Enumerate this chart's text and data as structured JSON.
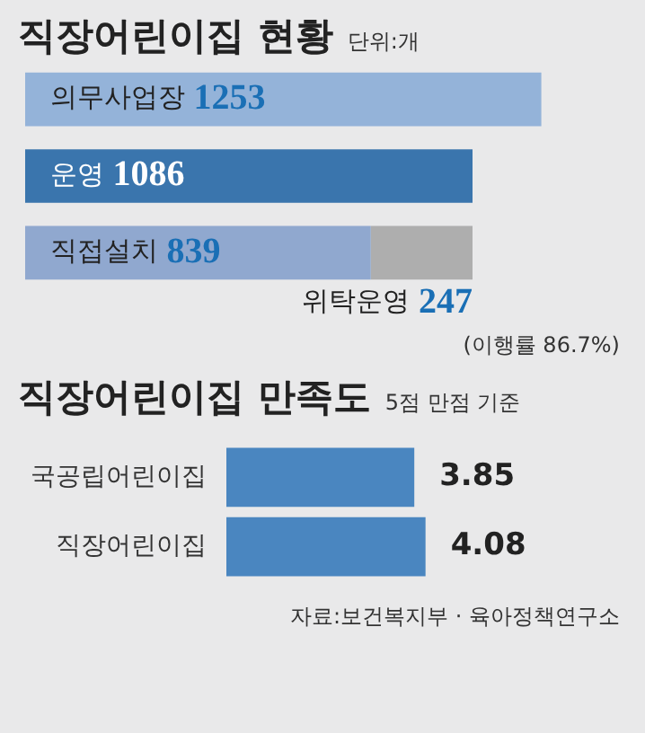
{
  "chart_data": [
    {
      "type": "bar",
      "orientation": "horizontal",
      "stacked": true,
      "title": "직장어린이집 현황",
      "subtitle": "단위:개",
      "categories": [
        null,
        null,
        null
      ],
      "tick_labels": false,
      "data_labels": true,
      "annotations": [
        "(이행률 86.7%)"
      ],
      "series": [
        {
          "name": "의무사업장",
          "color": "#94b3d9",
          "values": [
            1253,
            null,
            null
          ]
        },
        {
          "name": "운영",
          "color": "#3a75ad",
          "values": [
            null,
            1086,
            null
          ]
        },
        {
          "name": "직접설치",
          "color": "#90a8cf",
          "values": [
            null,
            null,
            839
          ]
        },
        {
          "name": "위탁운영",
          "color": "#aeaeae",
          "values": [
            null,
            null,
            247
          ]
        }
      ]
    },
    {
      "type": "bar",
      "orientation": "horizontal",
      "title": "직장어린이집 만족도",
      "subtitle": "5점 만점 기준",
      "categories": [
        "국공립어린이집",
        "직장어린이집"
      ],
      "values": [
        3.85,
        4.08
      ],
      "color": "#4a86c0",
      "tick_labels": "y",
      "data_labels": true,
      "annotations": [
        "자료:보건복지부 · 육아정책연구소"
      ]
    }
  ]
}
